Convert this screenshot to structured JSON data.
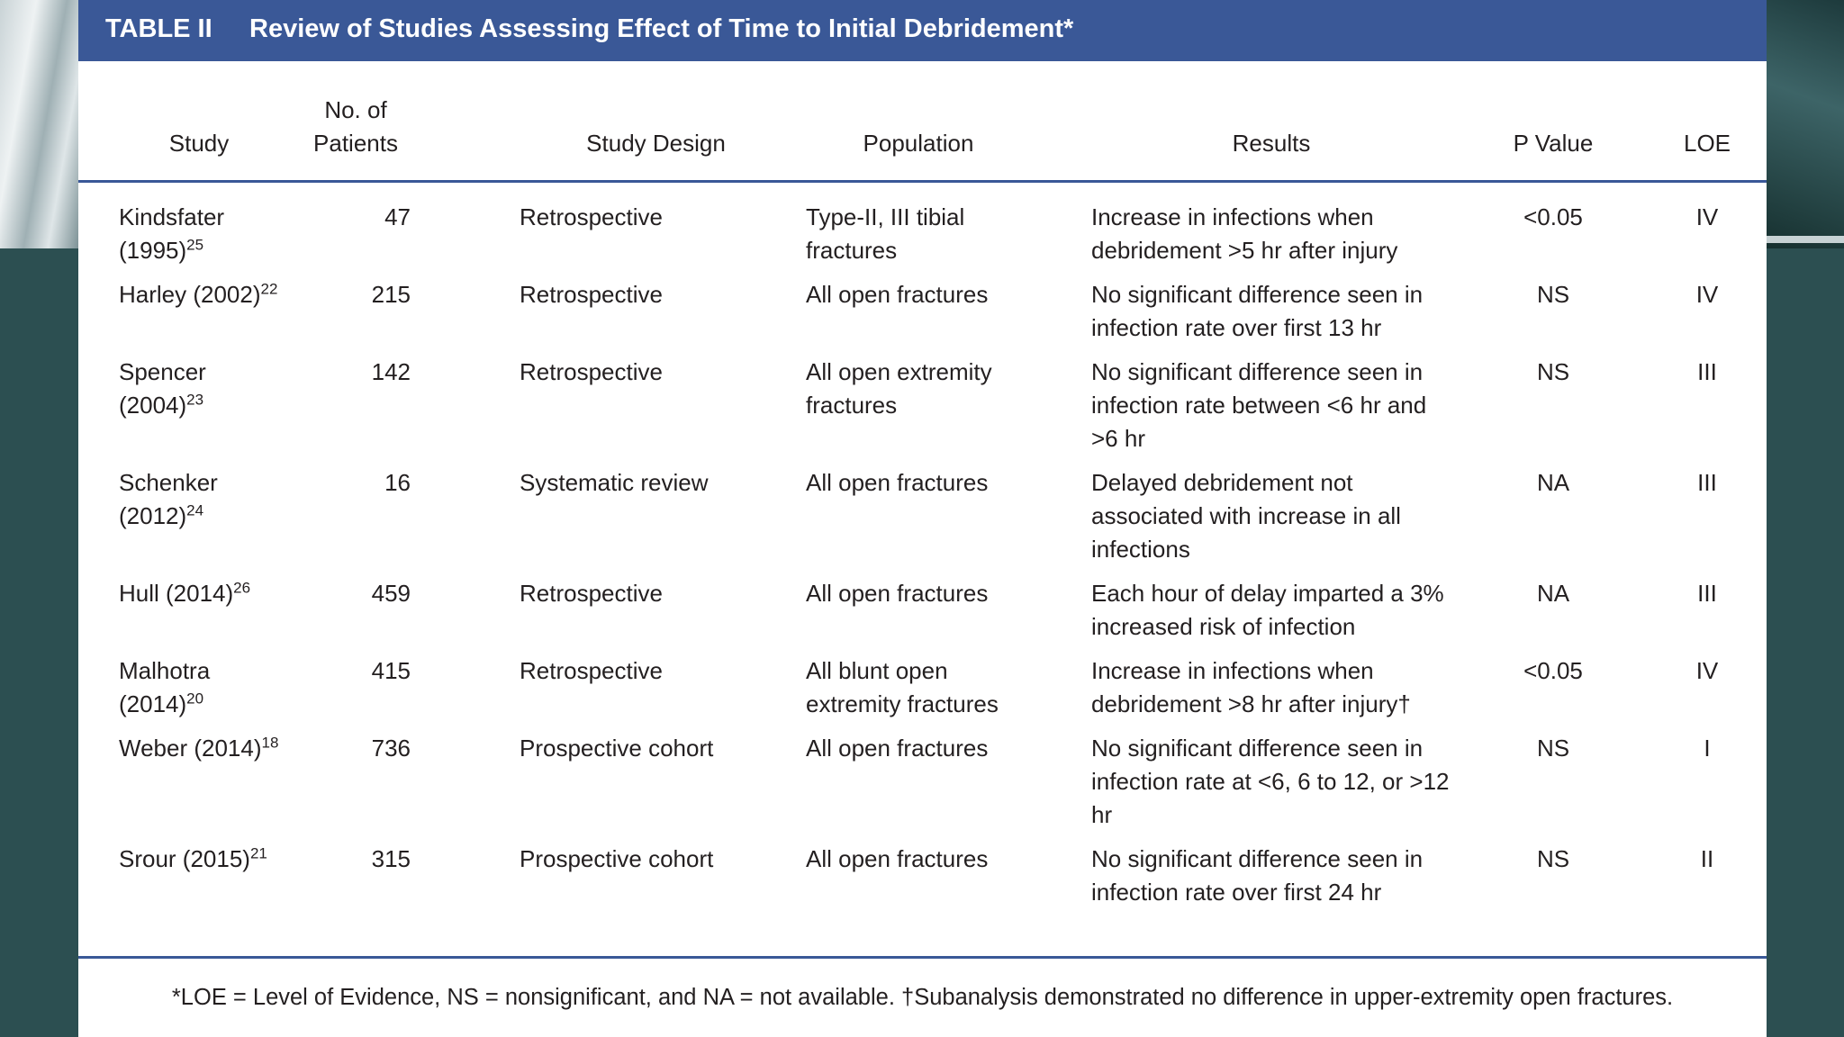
{
  "header": {
    "label": "TABLE II",
    "title": "Review of Studies Assessing Effect of Time to Initial Debridement*"
  },
  "table": {
    "columns": [
      "Study",
      "No. of Patients",
      "Study Design",
      "Population",
      "Results",
      "P Value",
      "LOE"
    ],
    "rows": [
      {
        "study": "Kindsfater (1995)",
        "ref": "25",
        "patients": 47,
        "design": "Retrospective",
        "population": "Type-II, III tibial fractures",
        "results": "Increase in infections when debridement >5 hr after injury",
        "p": "<0.05",
        "loe": "IV"
      },
      {
        "study": "Harley (2002)",
        "ref": "22",
        "patients": 215,
        "design": "Retrospective",
        "population": "All open fractures",
        "results": "No significant difference seen in infection rate over first 13 hr",
        "p": "NS",
        "loe": "IV"
      },
      {
        "study": "Spencer (2004)",
        "ref": "23",
        "patients": 142,
        "design": "Retrospective",
        "population": "All open extremity fractures",
        "results": "No significant difference seen in infection rate between <6 hr and >6 hr",
        "p": "NS",
        "loe": "III"
      },
      {
        "study": "Schenker (2012)",
        "ref": "24",
        "patients": 16,
        "design": "Systematic review",
        "population": "All open fractures",
        "results": "Delayed debridement not associated with increase in all infections",
        "p": "NA",
        "loe": "III"
      },
      {
        "study": "Hull (2014)",
        "ref": "26",
        "patients": 459,
        "design": "Retrospective",
        "population": "All open fractures",
        "results": "Each hour of delay imparted a 3% increased risk of infection",
        "p": "NA",
        "loe": "III"
      },
      {
        "study": "Malhotra (2014)",
        "ref": "20",
        "patients": 415,
        "design": "Retrospective",
        "population": "All blunt open extremity fractures",
        "results": "Increase in infections when debridement >8 hr after injury†",
        "p": "<0.05",
        "loe": "IV"
      },
      {
        "study": "Weber (2014)",
        "ref": "18",
        "patients": 736,
        "design": "Prospective cohort",
        "population": "All open fractures",
        "results": "No significant difference seen in infection rate at <6, 6 to 12, or >12 hr",
        "p": "NS",
        "loe": "I"
      },
      {
        "study": "Srour (2015)",
        "ref": "21",
        "patients": 315,
        "design": "Prospective cohort",
        "population": "All open fractures",
        "results": "No significant difference seen in infection rate over first 24 hr",
        "p": "NS",
        "loe": "II"
      }
    ]
  },
  "footnote": "*LOE = Level of Evidence, NS = nonsignificant, and NA = not available. †Subanalysis demonstrated no difference in upper-extremity open fractures."
}
